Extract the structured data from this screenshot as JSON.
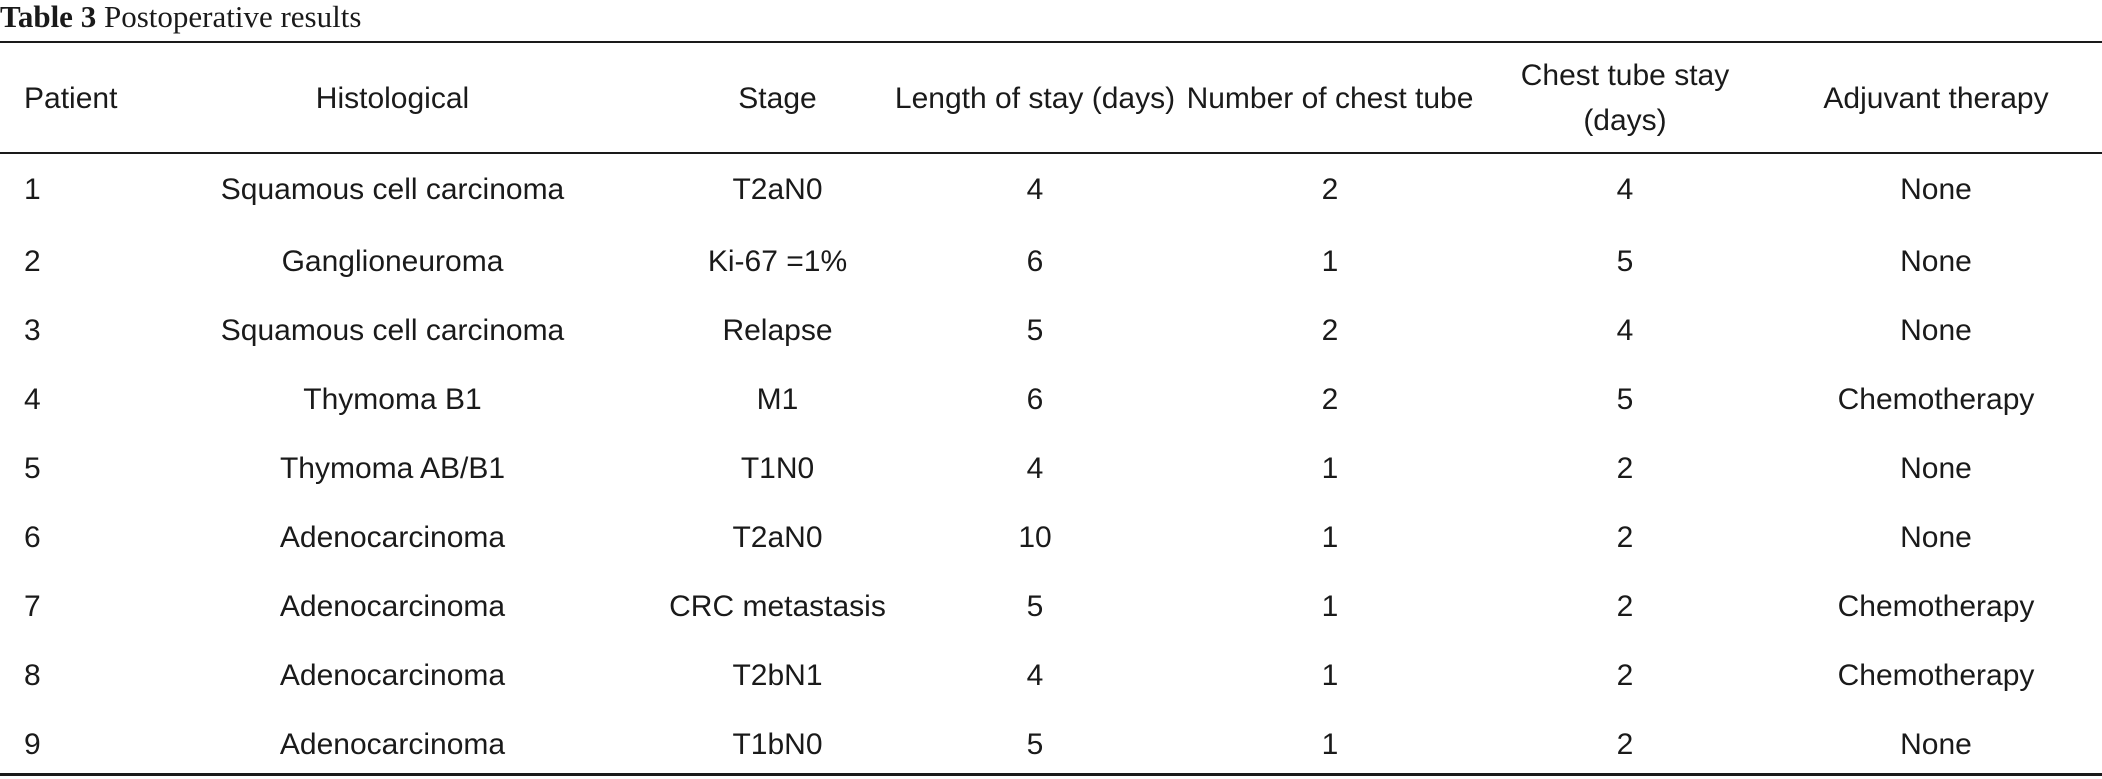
{
  "caption": {
    "label": "Table 3",
    "title": "Postoperative results"
  },
  "table": {
    "headers": [
      "Patient",
      "Histological",
      "Stage",
      "Length of stay (days)",
      "Number of chest tube",
      "Chest tube stay (days)",
      "Adjuvant therapy"
    ],
    "rows": [
      [
        "1",
        "Squamous cell carcinoma",
        "T2aN0",
        "4",
        "2",
        "4",
        "None"
      ],
      [
        "2",
        "Ganglioneuroma",
        "Ki-67 =1%",
        "6",
        "1",
        "5",
        "None"
      ],
      [
        "3",
        "Squamous cell carcinoma",
        "Relapse",
        "5",
        "2",
        "4",
        "None"
      ],
      [
        "4",
        "Thymoma B1",
        "M1",
        "6",
        "2",
        "5",
        "Chemotherapy"
      ],
      [
        "5",
        "Thymoma AB/B1",
        "T1N0",
        "4",
        "1",
        "2",
        "None"
      ],
      [
        "6",
        "Adenocarcinoma",
        "T2aN0",
        "10",
        "1",
        "2",
        "None"
      ],
      [
        "7",
        "Adenocarcinoma",
        "CRC metastasis",
        "5",
        "1",
        "2",
        "Chemotherapy"
      ],
      [
        "8",
        "Adenocarcinoma",
        "T2bN1",
        "4",
        "1",
        "2",
        "Chemotherapy"
      ],
      [
        "9",
        "Adenocarcinoma",
        "T1bN0",
        "5",
        "1",
        "2",
        "None"
      ]
    ]
  }
}
